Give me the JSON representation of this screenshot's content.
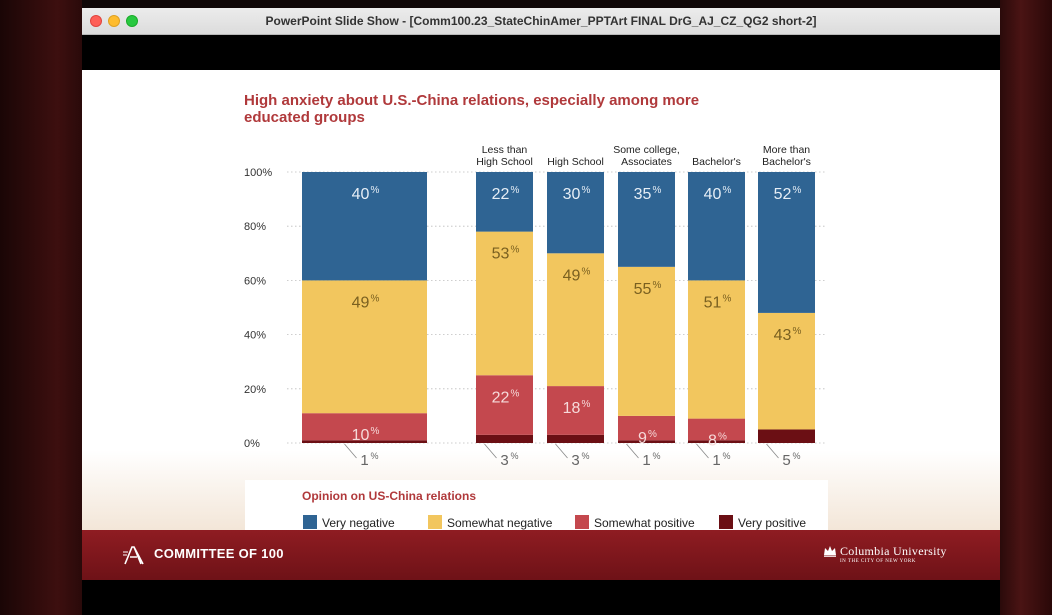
{
  "window": {
    "title": "PowerPoint Slide Show - [Comm100.23_StateChinAmer_PPTArt FINAL DrG_AJ_CZ_QG2 short-2]"
  },
  "slide": {
    "title_line1": "High anxiety about U.S.-China relations, especially among more",
    "title_line2": "educated groups",
    "footer_left": "COMMITTEE OF 100",
    "footer_right": "Columbia University",
    "footer_right_sub": "IN THE CITY OF NEW YORK"
  },
  "chart_data": {
    "type": "bar",
    "stacked": true,
    "yticks": [
      "100%",
      "80%",
      "60%",
      "40%",
      "20%",
      "0%"
    ],
    "ylim": [
      0,
      100
    ],
    "categories": [
      "",
      "Less than High School",
      "High School",
      "Some college, Associates",
      "Bachelor's",
      "More than Bachelor's"
    ],
    "category_labels": [
      [],
      [
        "Less than",
        "High School"
      ],
      [
        "High School"
      ],
      [
        "Some college,",
        "Associates"
      ],
      [
        "Bachelor's"
      ],
      [
        "More than",
        "Bachelor's"
      ]
    ],
    "series": [
      {
        "name": "Very positive",
        "color": "#6b0f14",
        "values": [
          1,
          3,
          3,
          1,
          1,
          5
        ]
      },
      {
        "name": "Somewhat positive",
        "color": "#c4484e",
        "values": [
          10,
          22,
          18,
          9,
          8,
          0
        ]
      },
      {
        "name": "Somewhat negative",
        "color": "#f2c65e",
        "values": [
          49,
          53,
          49,
          55,
          51,
          43
        ]
      },
      {
        "name": "Very negative",
        "color": "#2f6493",
        "values": [
          40,
          22,
          30,
          35,
          40,
          52
        ]
      }
    ],
    "segment_labels": {
      "very_negative": [
        "40",
        "22",
        "30",
        "35",
        "40",
        "52"
      ],
      "somewhat_negative": [
        "49",
        "53",
        "49",
        "55",
        "51",
        "43"
      ],
      "somewhat_positive": [
        "10",
        "22",
        "18",
        "9",
        "8",
        ""
      ],
      "very_positive": [
        "1",
        "3",
        "3",
        "1",
        "1",
        "5"
      ]
    },
    "percent_suffix": "%",
    "legend_title": "Opinion on US-China relations",
    "legend": [
      "Very negative",
      "Somewhat negative",
      "Somewhat positive",
      "Very positive"
    ],
    "grid": true
  }
}
